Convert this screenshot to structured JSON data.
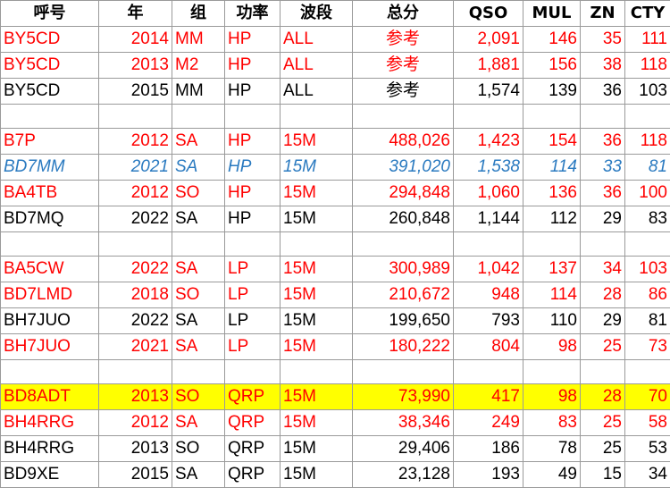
{
  "colors": {
    "red": "#ff0000",
    "black": "#000000",
    "blue": "#2a7ac0",
    "highlight": "#ffff00",
    "grid": "#9a9a9a"
  },
  "headers": [
    "呼号",
    "年",
    "组",
    "功率",
    "波段",
    "总分",
    "QSO",
    "MUL",
    "ZN",
    "CTY"
  ],
  "rows": [
    {
      "style": "red",
      "cells": [
        "BY5CD",
        "2014",
        "MM",
        "HP",
        "ALL",
        "参考",
        "2,091",
        "146",
        "35",
        "111"
      ]
    },
    {
      "style": "red",
      "cells": [
        "BY5CD",
        "2013",
        "M2",
        "HP",
        "ALL",
        "参考",
        "1,881",
        "156",
        "38",
        "118"
      ]
    },
    {
      "style": "black",
      "cells": [
        "BY5CD",
        "2015",
        "MM",
        "HP",
        "ALL",
        "参考",
        "1,574",
        "139",
        "36",
        "103"
      ]
    },
    {
      "style": "blank",
      "cells": [
        "",
        "",
        "",
        "",
        "",
        "",
        "",
        "",
        "",
        ""
      ]
    },
    {
      "style": "red",
      "cells": [
        "B7P",
        "2012",
        "SA",
        "HP",
        "15M",
        "488,026",
        "1,423",
        "154",
        "36",
        "118"
      ]
    },
    {
      "style": "blue",
      "cells": [
        "BD7MM",
        "2021",
        "SA",
        "HP",
        "15M",
        "391,020",
        "1,538",
        "114",
        "33",
        "81"
      ]
    },
    {
      "style": "red",
      "cells": [
        "BA4TB",
        "2012",
        "SO",
        "HP",
        "15M",
        "294,848",
        "1,060",
        "136",
        "36",
        "100"
      ]
    },
    {
      "style": "black",
      "cells": [
        "BD7MQ",
        "2022",
        "SA",
        "HP",
        "15M",
        "260,848",
        "1,144",
        "112",
        "29",
        "83"
      ]
    },
    {
      "style": "blank",
      "cells": [
        "",
        "",
        "",
        "",
        "",
        "",
        "",
        "",
        "",
        ""
      ]
    },
    {
      "style": "red",
      "cells": [
        "BA5CW",
        "2022",
        "SA",
        "LP",
        "15M",
        "300,989",
        "1,042",
        "137",
        "34",
        "103"
      ]
    },
    {
      "style": "red",
      "cells": [
        "BD7LMD",
        "2018",
        "SO",
        "LP",
        "15M",
        "210,672",
        "948",
        "114",
        "28",
        "86"
      ]
    },
    {
      "style": "black",
      "cells": [
        "BH7JUO",
        "2022",
        "SA",
        "LP",
        "15M",
        "199,650",
        "793",
        "110",
        "29",
        "81"
      ]
    },
    {
      "style": "red",
      "cells": [
        "BH7JUO",
        "2021",
        "SA",
        "LP",
        "15M",
        "180,222",
        "804",
        "98",
        "25",
        "73"
      ]
    },
    {
      "style": "blank",
      "cells": [
        "",
        "",
        "",
        "",
        "",
        "",
        "",
        "",
        "",
        ""
      ]
    },
    {
      "style": "red hl",
      "cells": [
        "BD8ADT",
        "2013",
        "SO",
        "QRP",
        "15M",
        "73,990",
        "417",
        "98",
        "28",
        "70"
      ]
    },
    {
      "style": "red",
      "cells": [
        "BH4RRG",
        "2012",
        "SA",
        "QRP",
        "15M",
        "38,346",
        "249",
        "83",
        "25",
        "58"
      ]
    },
    {
      "style": "black",
      "cells": [
        "BH4RRG",
        "2013",
        "SO",
        "QRP",
        "15M",
        "29,406",
        "186",
        "78",
        "25",
        "53"
      ]
    },
    {
      "style": "black",
      "cells": [
        "BD9XE",
        "2015",
        "SA",
        "QRP",
        "15M",
        "23,128",
        "193",
        "49",
        "15",
        "34"
      ]
    }
  ]
}
